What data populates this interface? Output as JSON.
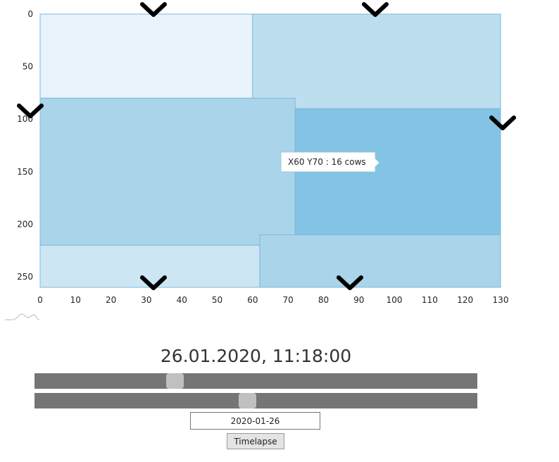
{
  "chart_data": {
    "type": "heatmap",
    "title": "",
    "xlabel": "",
    "ylabel": "",
    "xlim": [
      0,
      130
    ],
    "ylim": [
      0,
      260
    ],
    "y_axis_inverted": true,
    "x_ticks": [
      "0",
      "10",
      "20",
      "30",
      "40",
      "50",
      "60",
      "70",
      "80",
      "90",
      "100",
      "110",
      "120",
      "130"
    ],
    "y_ticks": [
      "0",
      "50",
      "100",
      "150",
      "200",
      "250"
    ],
    "cells": [
      {
        "x0": 0,
        "x1": 60,
        "y0": 0,
        "y1": 80,
        "color": "#e8f3fa"
      },
      {
        "x0": 60,
        "x1": 130,
        "y0": 0,
        "y1": 90,
        "color": "#bcdeef"
      },
      {
        "x0": 0,
        "x1": 72,
        "y0": 80,
        "y1": 220,
        "color": "#a9d4ea"
      },
      {
        "x0": 72,
        "x1": 130,
        "y0": 90,
        "y1": 210,
        "color": "#83c3e3"
      },
      {
        "x0": 0,
        "x1": 62,
        "y0": 220,
        "y1": 260,
        "color": "#cde6f3"
      },
      {
        "x0": 62,
        "x1": 130,
        "y0": 210,
        "y1": 260,
        "color": "#a9d4ea"
      }
    ],
    "tooltip": "X60 Y70 : 16 cows",
    "grid": false,
    "legend": "none"
  },
  "datetime": "26.01.2020, 11:18:00",
  "sliders": [
    {
      "name": "slider-1",
      "value": 0.31
    },
    {
      "name": "slider-2",
      "value": 0.48
    }
  ],
  "date_input": {
    "value": "2020-01-26"
  },
  "timelapse_button": {
    "label": "Timelapse"
  },
  "colors": {
    "slider_track": "#757575",
    "slider_thumb": "#c0c0c0",
    "cell_border": "#7fb9d8"
  },
  "chevrons": "chevron-down-icon"
}
